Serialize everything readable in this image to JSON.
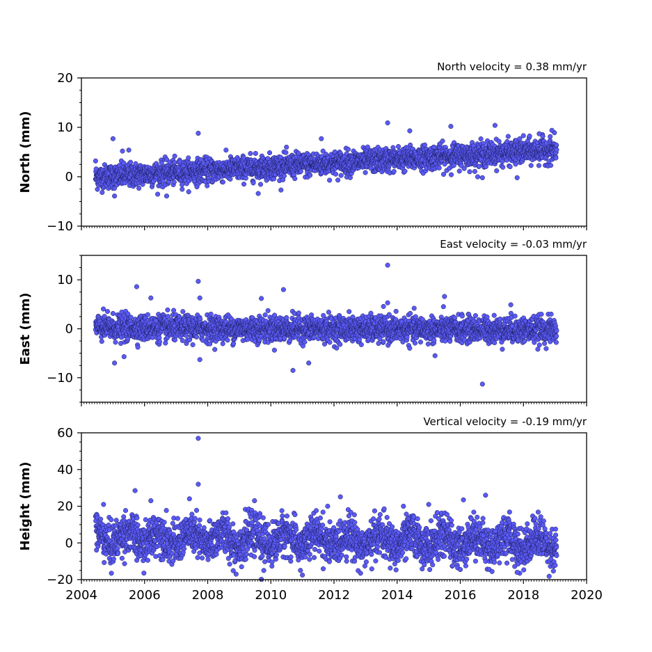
{
  "figure": {
    "x_tick_labels": [
      "2004",
      "2006",
      "2008",
      "2010",
      "2012",
      "2014",
      "2016",
      "2018",
      "2020"
    ]
  },
  "colors": {
    "marker_fill": "#5a5af5",
    "marker_edge": "#1a1a55",
    "axes": "#000000",
    "background": "#ffffff"
  },
  "chart_data": [
    {
      "type": "scatter",
      "title": "North velocity = 0.38 mm/yr",
      "ylabel": "North (mm)",
      "xlim": [
        2004,
        2020
      ],
      "ylim": [
        -10,
        20
      ],
      "yticks": [
        -10,
        0,
        10,
        20
      ],
      "ytick_labels": [
        "−10",
        "0",
        "10",
        "20"
      ],
      "series": [
        {
          "x_range": [
            2004.45,
            2019.05
          ],
          "trend": {
            "value_at_2004_45": -0.1,
            "velocity_mm_per_yr": 0.38
          },
          "scatter_sd": 1.2,
          "outliers": [
            [
              2004.45,
              3.2
            ],
            [
              2005.0,
              7.7
            ],
            [
              2005.05,
              -3.9
            ],
            [
              2005.3,
              5.2
            ],
            [
              2005.5,
              5.4
            ],
            [
              2006.7,
              -3.9
            ],
            [
              2007.7,
              8.8
            ],
            [
              2009.6,
              -3.4
            ],
            [
              2011.6,
              7.7
            ],
            [
              2013.7,
              10.9
            ],
            [
              2014.4,
              9.3
            ],
            [
              2015.7,
              10.2
            ],
            [
              2016.7,
              -0.2
            ],
            [
              2017.1,
              10.4
            ],
            [
              2017.8,
              -0.2
            ],
            [
              2018.5,
              8.7
            ],
            [
              2018.9,
              9.4
            ]
          ]
        }
      ]
    },
    {
      "type": "scatter",
      "title": "East velocity = -0.03 mm/yr",
      "ylabel": "East (mm)",
      "xlim": [
        2004,
        2020
      ],
      "ylim": [
        -15,
        15
      ],
      "yticks": [
        -10,
        0,
        10
      ],
      "ytick_labels": [
        "−10",
        "0",
        "10"
      ],
      "series": [
        {
          "x_range": [
            2004.45,
            2019.05
          ],
          "trend": {
            "value_at_2004_45": 0.2,
            "velocity_mm_per_yr": -0.03
          },
          "scatter_sd": 1.3,
          "outliers": [
            [
              2005.05,
              -7.0
            ],
            [
              2005.35,
              -5.7
            ],
            [
              2005.75,
              8.6
            ],
            [
              2006.2,
              6.3
            ],
            [
              2007.7,
              9.7
            ],
            [
              2007.75,
              -6.3
            ],
            [
              2007.75,
              6.3
            ],
            [
              2009.7,
              6.2
            ],
            [
              2010.4,
              8.0
            ],
            [
              2010.7,
              -8.5
            ],
            [
              2011.2,
              -7.0
            ],
            [
              2013.7,
              13.0
            ],
            [
              2013.7,
              5.3
            ],
            [
              2015.2,
              -5.5
            ],
            [
              2015.5,
              6.6
            ],
            [
              2016.7,
              -11.3
            ],
            [
              2017.6,
              4.9
            ]
          ]
        }
      ]
    },
    {
      "type": "scatter",
      "title": "Vertical velocity = -0.19 mm/yr",
      "ylabel": "Height (mm)",
      "xlim": [
        2004,
        2020
      ],
      "ylim": [
        -20,
        60
      ],
      "yticks": [
        -20,
        0,
        20,
        40,
        60
      ],
      "ytick_labels": [
        "−20",
        "0",
        "20",
        "40",
        "60"
      ],
      "series": [
        {
          "x_range": [
            2004.45,
            2019.05
          ],
          "trend": {
            "value_at_2004_45": 3.0,
            "velocity_mm_per_yr": -0.19
          },
          "scatter_sd": 5.5,
          "seasonal_amplitude": 3.5,
          "outliers": [
            [
              2004.7,
              21.0
            ],
            [
              2004.95,
              -16.5
            ],
            [
              2005.7,
              28.5
            ],
            [
              2006.2,
              23.0
            ],
            [
              2007.7,
              57.0
            ],
            [
              2007.7,
              32.0
            ],
            [
              2008.9,
              -17.0
            ],
            [
              2009.7,
              -19.8
            ],
            [
              2011.0,
              -17.5
            ],
            [
              2011.8,
              20.0
            ],
            [
              2014.2,
              20.0
            ],
            [
              2015.0,
              21.0
            ],
            [
              2016.0,
              -14.5
            ],
            [
              2016.1,
              23.5
            ],
            [
              2016.8,
              26.0
            ],
            [
              2017.8,
              -16.0
            ]
          ]
        }
      ]
    }
  ]
}
